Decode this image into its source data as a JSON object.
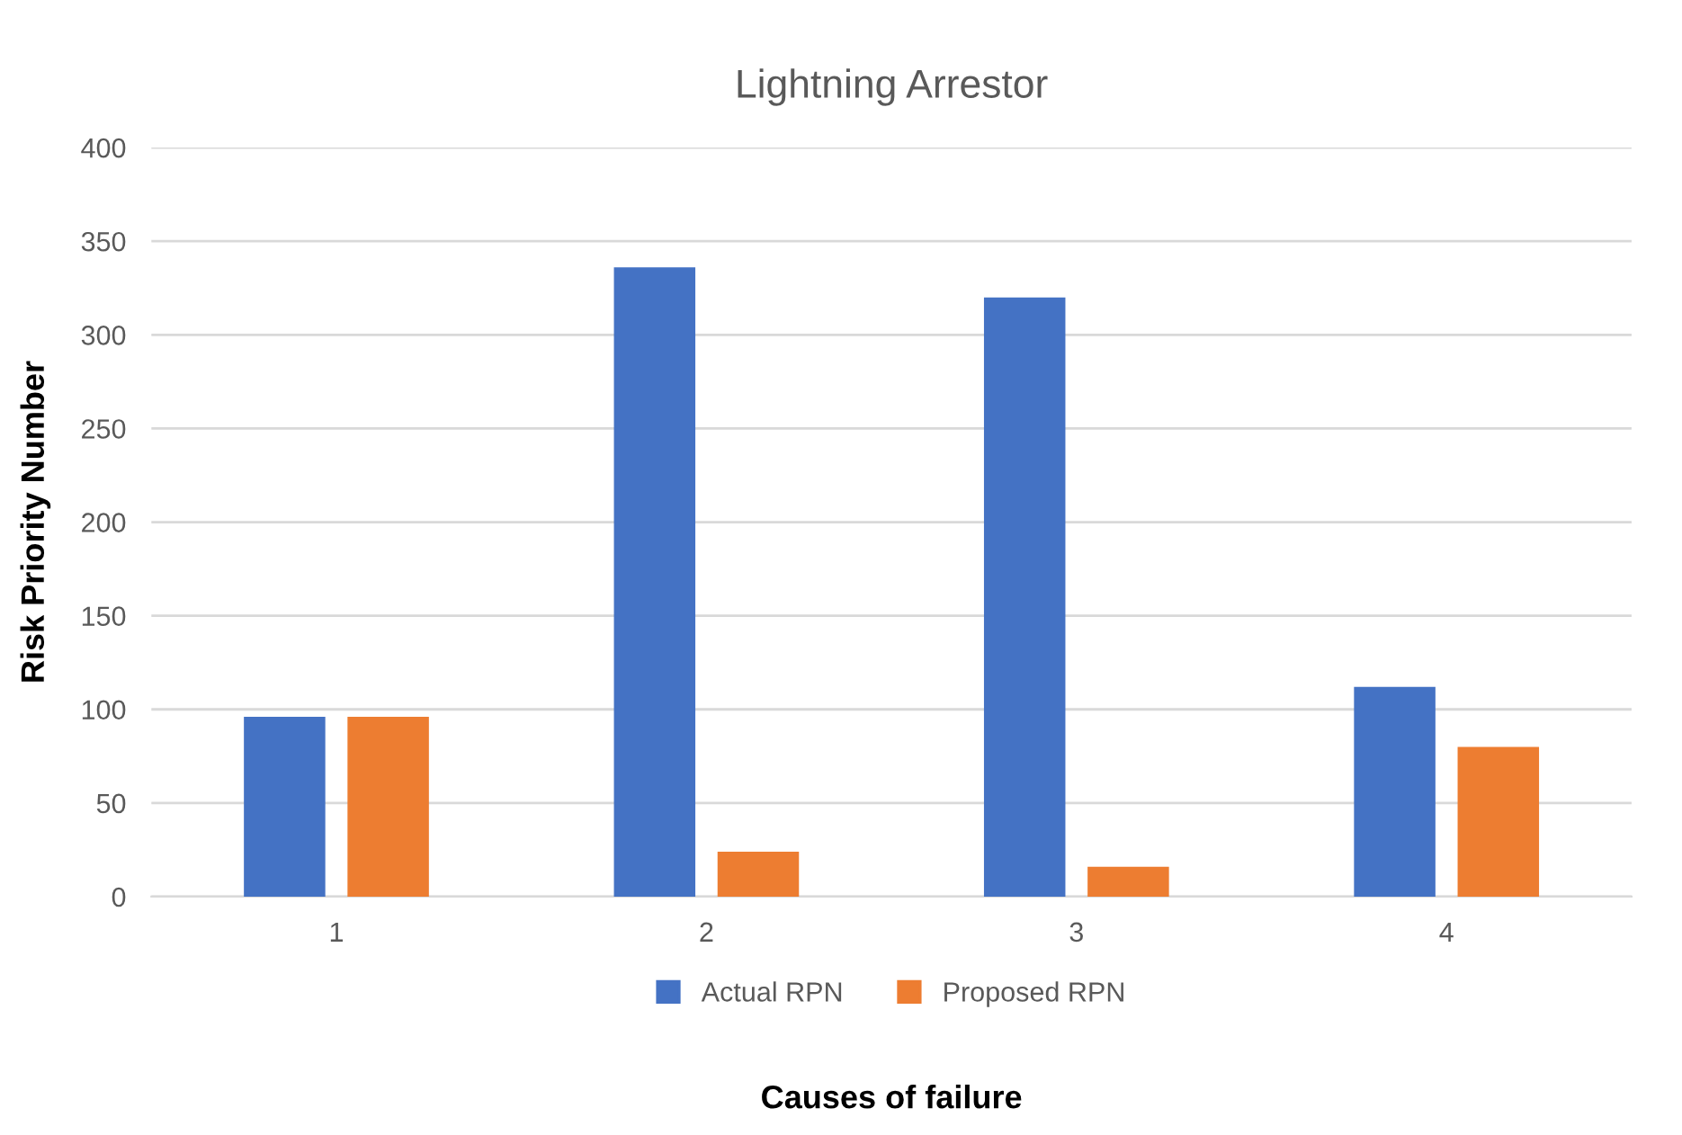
{
  "chart_data": {
    "type": "bar",
    "title": "Lightning Arrestor",
    "xlabel": "Causes of failure",
    "ylabel": "Risk Priority Number",
    "categories": [
      "1",
      "2",
      "3",
      "4"
    ],
    "series": [
      {
        "name": "Actual RPN",
        "color": "#4472c4",
        "values": [
          96,
          336,
          320,
          112
        ]
      },
      {
        "name": "Proposed RPN",
        "color": "#ed7d31",
        "values": [
          96,
          24,
          16,
          80
        ]
      }
    ],
    "ylim": [
      0,
      400
    ],
    "yticks": [
      0,
      50,
      100,
      150,
      200,
      250,
      300,
      350,
      400
    ],
    "grid": "y",
    "legend": "bottom"
  }
}
